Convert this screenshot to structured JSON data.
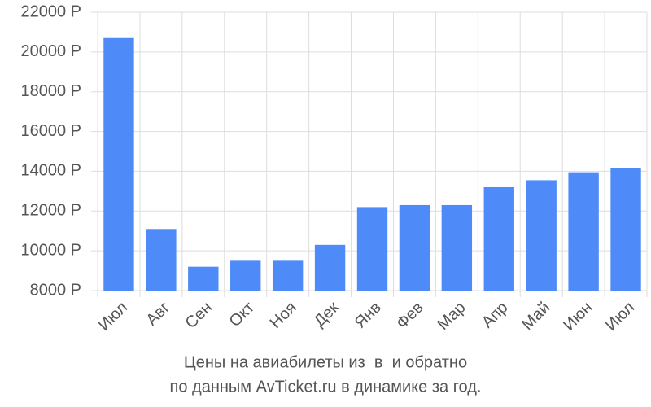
{
  "chart_data": {
    "type": "bar",
    "title": [
      "Цены на авиабилеты из  в  и обратно",
      "по данным AvTicket.ru в динамике за год."
    ],
    "categories": [
      "Июл",
      "Авг",
      "Сен",
      "Окт",
      "Ноя",
      "Дек",
      "Янв",
      "Фев",
      "Мар",
      "Апр",
      "Май",
      "Июн",
      "Июл"
    ],
    "values": [
      20700,
      11100,
      9200,
      9500,
      9500,
      10300,
      12200,
      12300,
      12300,
      13200,
      13550,
      13950,
      14150
    ],
    "color": "#4e8af8",
    "ylim": [
      8000,
      22000
    ],
    "yticks": [
      {
        "value": 8000,
        "label": "8000 Р"
      },
      {
        "value": 10000,
        "label": "10000 Р"
      },
      {
        "value": 12000,
        "label": "12000 Р"
      },
      {
        "value": 14000,
        "label": "14000 Р"
      },
      {
        "value": 16000,
        "label": "16000 Р"
      },
      {
        "value": 18000,
        "label": "18000 Р"
      },
      {
        "value": 20000,
        "label": "20000 Р"
      },
      {
        "value": 22000,
        "label": "22000 Р"
      }
    ],
    "grid": true
  }
}
